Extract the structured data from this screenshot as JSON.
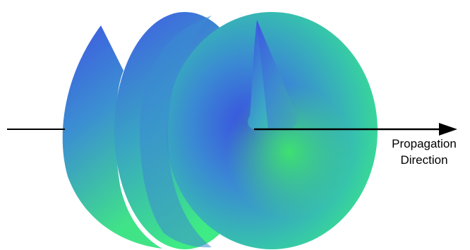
{
  "label": {
    "line1": "Propagation",
    "line2": "Direction"
  },
  "colors": {
    "wavefront_blue": "#3f52e6",
    "wavefront_teal": "#35a6c6",
    "wavefront_green": "#3df27e",
    "arrow": "#000000",
    "background": "#ffffff"
  },
  "helix": {
    "turns": 3
  }
}
